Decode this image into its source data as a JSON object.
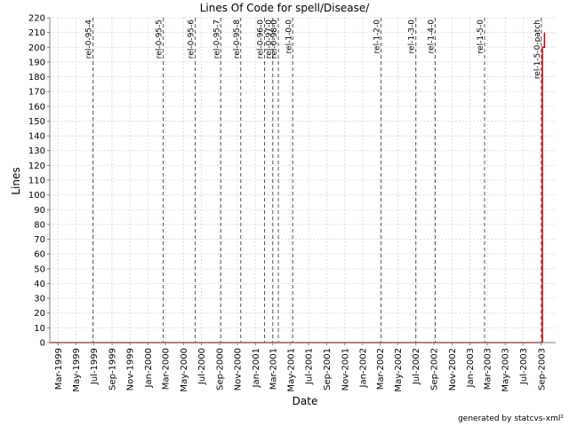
{
  "chart_data": {
    "type": "line",
    "title": "Lines Of Code for spell/Disease/",
    "xlabel": "Date",
    "ylabel": "Lines",
    "ylim": [
      0,
      220
    ],
    "y_ticks": [
      0,
      10,
      20,
      30,
      40,
      50,
      60,
      70,
      80,
      90,
      100,
      110,
      120,
      130,
      140,
      150,
      160,
      170,
      180,
      190,
      200,
      210,
      220
    ],
    "xlim": [
      "1999-02-01",
      "2003-10-20"
    ],
    "x_ticks": [
      {
        "date": "1999-03-01",
        "label": "Mar-1999"
      },
      {
        "date": "1999-05-01",
        "label": "May-1999"
      },
      {
        "date": "1999-07-01",
        "label": "Jul-1999"
      },
      {
        "date": "1999-09-01",
        "label": "Sep-1999"
      },
      {
        "date": "1999-11-01",
        "label": "Nov-1999"
      },
      {
        "date": "2000-01-01",
        "label": "Jan-2000"
      },
      {
        "date": "2000-03-01",
        "label": "Mar-2000"
      },
      {
        "date": "2000-05-01",
        "label": "May-2000"
      },
      {
        "date": "2000-07-01",
        "label": "Jul-2000"
      },
      {
        "date": "2000-09-01",
        "label": "Sep-2000"
      },
      {
        "date": "2000-11-01",
        "label": "Nov-2000"
      },
      {
        "date": "2001-01-01",
        "label": "Jan-2001"
      },
      {
        "date": "2001-03-01",
        "label": "Mar-2001"
      },
      {
        "date": "2001-05-01",
        "label": "May-2001"
      },
      {
        "date": "2001-07-01",
        "label": "Jul-2001"
      },
      {
        "date": "2001-09-01",
        "label": "Sep-2001"
      },
      {
        "date": "2001-11-01",
        "label": "Nov-2001"
      },
      {
        "date": "2002-01-01",
        "label": "Jan-2002"
      },
      {
        "date": "2002-03-01",
        "label": "Mar-2002"
      },
      {
        "date": "2002-05-01",
        "label": "May-2002"
      },
      {
        "date": "2002-07-01",
        "label": "Jul-2002"
      },
      {
        "date": "2002-09-01",
        "label": "Sep-2002"
      },
      {
        "date": "2002-11-01",
        "label": "Nov-2002"
      },
      {
        "date": "2003-01-01",
        "label": "Jan-2003"
      },
      {
        "date": "2003-03-01",
        "label": "Mar-2003"
      },
      {
        "date": "2003-05-01",
        "label": "May-2003"
      },
      {
        "date": "2003-07-01",
        "label": "Jul-2003"
      },
      {
        "date": "2003-09-01",
        "label": "Sep-2003"
      }
    ],
    "grid": true,
    "series": [
      {
        "color": "#cc0000",
        "points": [
          {
            "x": "1999-02-01",
            "y": 0
          },
          {
            "x": "2003-09-05",
            "y": 0
          },
          {
            "x": "2003-09-05",
            "y": 200
          },
          {
            "x": "2003-09-12",
            "y": 200
          },
          {
            "x": "2003-09-12",
            "y": 210
          }
        ]
      }
    ],
    "tags": [
      {
        "date": "1999-06-28",
        "label": "rel-0-95-4"
      },
      {
        "date": "2000-02-22",
        "label": "rel-0-95-5"
      },
      {
        "date": "2000-06-10",
        "label": "rel-0-95-6"
      },
      {
        "date": "2000-09-05",
        "label": "rel-0-95-7"
      },
      {
        "date": "2000-11-12",
        "label": "rel-0-95-8"
      },
      {
        "date": "2001-02-01",
        "label": "rel-0-96-0"
      },
      {
        "date": "2001-03-01",
        "label": "rel-0-97-0"
      },
      {
        "date": "2001-03-20",
        "label": "rel-0-98-0"
      },
      {
        "date": "2001-05-08",
        "label": "rel-1-0-0"
      },
      {
        "date": "2002-03-05",
        "label": "rel-1-2-0"
      },
      {
        "date": "2002-07-01",
        "label": "rel-1-3-0"
      },
      {
        "date": "2002-09-05",
        "label": "rel-1-4-0"
      },
      {
        "date": "2003-02-20",
        "label": "rel-1-5-0"
      },
      {
        "date": "2003-09-01",
        "label": "rel-1-5-0-patch"
      }
    ],
    "tag_color": "#555555"
  },
  "footer": {
    "credit": "generated by statcvs-xml²"
  }
}
